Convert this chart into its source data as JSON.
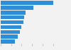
{
  "values": [
    100,
    62,
    48,
    45,
    43,
    40,
    37,
    32,
    27
  ],
  "bar_color": "#2e8fd8",
  "background_color": "#f2f2f2",
  "plot_bg_color": "#f2f2f2",
  "xlim": [
    0,
    110
  ],
  "bar_height": 0.8,
  "figsize": [
    1.0,
    0.71
  ],
  "dpi": 100
}
